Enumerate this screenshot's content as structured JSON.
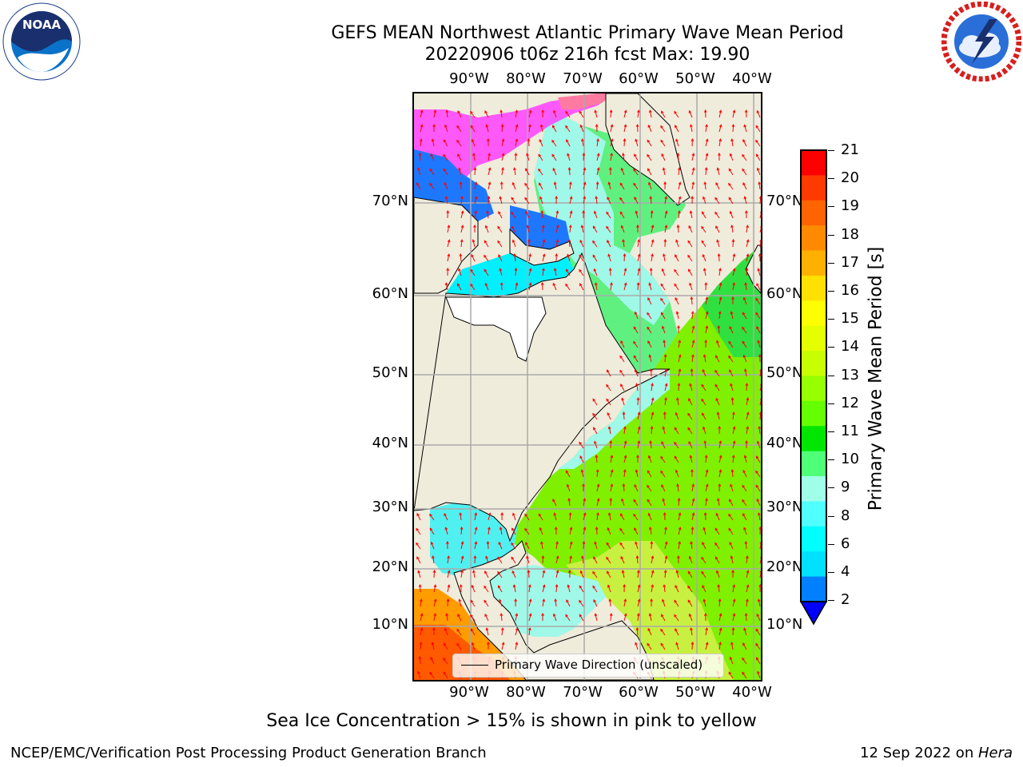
{
  "title": {
    "line1": "GEFS MEAN Northwest Atlantic Primary Wave Mean Period",
    "line2": "20220906 t06z 216h fcst   Max: 19.90"
  },
  "logos": {
    "left": {
      "icon": "noaa-logo",
      "text": "NOAA"
    },
    "right": {
      "icon": "national-weather-service-logo"
    }
  },
  "map": {
    "lon_ticks_top": [
      "90°W",
      "80°W",
      "70°W",
      "60°W",
      "50°W",
      "40°W"
    ],
    "lon_ticks_bottom": [
      "90°W",
      "80°W",
      "70°W",
      "60°W",
      "50°W",
      "40°W"
    ],
    "lat_ticks_left": [
      "70°N",
      "60°N",
      "50°N",
      "40°N",
      "30°N",
      "20°N",
      "10°N"
    ],
    "lat_ticks_right": [
      "70°N",
      "60°N",
      "50°N",
      "40°N",
      "30°N",
      "20°N",
      "10°N"
    ],
    "legend_label": "Primary Wave Direction (unscaled)",
    "colors": {
      "land": "#efecdc",
      "vectors": "#ff0000",
      "grid": "#aaaaaa"
    }
  },
  "colorbar": {
    "label": "Primary Wave Mean Period [s]",
    "ticks": [
      "21",
      "20",
      "19",
      "18",
      "17",
      "16",
      "15",
      "14",
      "13",
      "12",
      "11",
      "10",
      "9",
      "8",
      "6",
      "4",
      "2"
    ],
    "colors": [
      "#ff0000",
      "#ff3a00",
      "#ff6400",
      "#ff8a00",
      "#ffb000",
      "#ffe000",
      "#ffff00",
      "#e6ff00",
      "#c8ff00",
      "#96ff00",
      "#64ff00",
      "#00e600",
      "#50ff78",
      "#a0ffe8",
      "#50ffff",
      "#00ffff",
      "#00e0ff",
      "#0080ff"
    ],
    "extend_color": "#0000ff"
  },
  "notes": {
    "sea_ice": "Sea Ice Concentration > 15% is shown in pink to yellow"
  },
  "footer": {
    "left": "NCEP/EMC/Verification Post Processing Product Generation Branch",
    "date": "12 Sep 2022 on ",
    "host": "Hera"
  }
}
